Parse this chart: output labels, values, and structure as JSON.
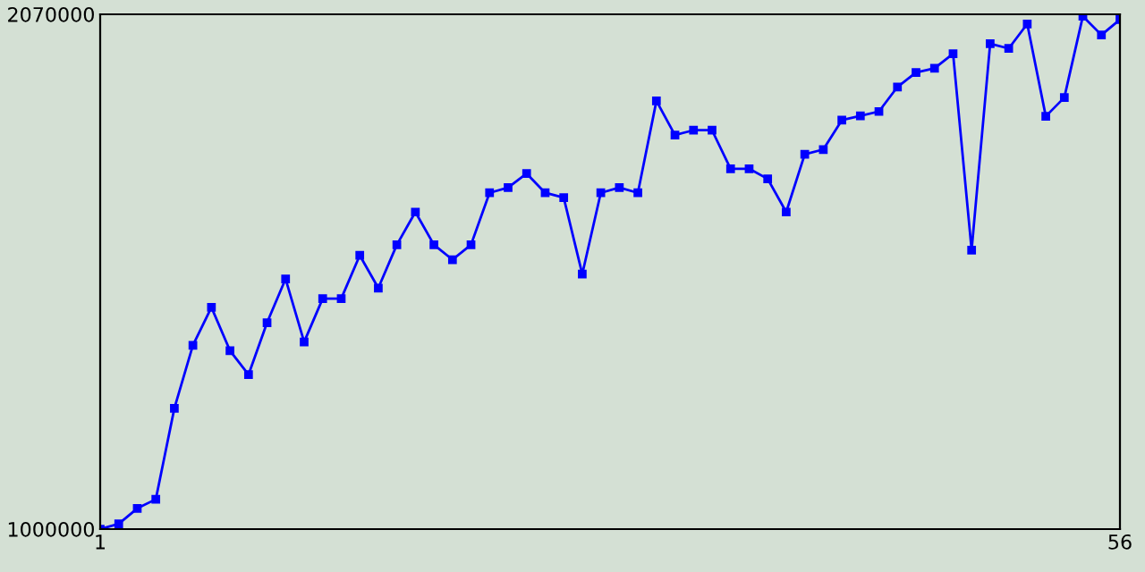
{
  "chart_data": {
    "type": "line",
    "x": [
      1,
      2,
      3,
      4,
      5,
      6,
      7,
      8,
      9,
      10,
      11,
      12,
      13,
      14,
      15,
      16,
      17,
      18,
      19,
      20,
      21,
      22,
      23,
      24,
      25,
      26,
      27,
      28,
      29,
      30,
      31,
      32,
      33,
      34,
      35,
      36,
      37,
      38,
      39,
      40,
      41,
      42,
      43,
      44,
      45,
      46,
      47,
      48,
      49,
      50,
      51,
      52,
      53,
      54,
      55,
      56
    ],
    "series": [
      {
        "color": "#0000ff",
        "values": [
          1000000,
          1011000,
          1043000,
          1062000,
          1251000,
          1382000,
          1461000,
          1371000,
          1321000,
          1429000,
          1520000,
          1389000,
          1479000,
          1479000,
          1569000,
          1501000,
          1591000,
          1659000,
          1591000,
          1560000,
          1591000,
          1699000,
          1710000,
          1739000,
          1699000,
          1689000,
          1530000,
          1699000,
          1710000,
          1699000,
          1890000,
          1819000,
          1829000,
          1829000,
          1749000,
          1749000,
          1728000,
          1659000,
          1779000,
          1789000,
          1850000,
          1859000,
          1868000,
          1919000,
          1949000,
          1958000,
          1988000,
          1580000,
          2009000,
          1999000,
          2050000,
          1858000,
          1897000,
          2066000,
          2027000,
          2059000
        ]
      }
    ],
    "xlim": [
      1,
      56
    ],
    "ylim": [
      1000000,
      2070000
    ],
    "xticks": [
      1,
      56
    ],
    "yticks": [
      1000000,
      2070000
    ],
    "marker": "square",
    "line_style": "solid"
  }
}
